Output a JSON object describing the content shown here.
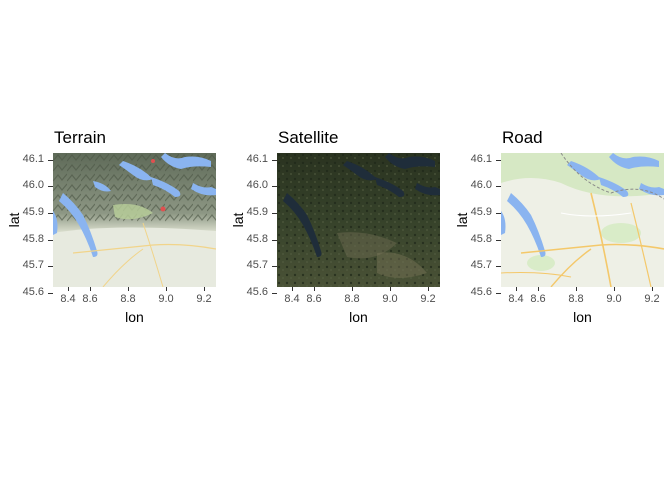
{
  "panels": [
    {
      "title": "Terrain",
      "style": "terrain"
    },
    {
      "title": "Satellite",
      "style": "satellite"
    },
    {
      "title": "Road",
      "style": "road"
    }
  ],
  "axes": {
    "xlabel": "lon",
    "ylabel": "lat",
    "xticks": [
      "8.4",
      "8.6",
      "8.8",
      "9.0",
      "9.2"
    ],
    "yticks": [
      "46.1",
      "46.0",
      "45.9",
      "45.8",
      "45.7",
      "45.6"
    ],
    "xlim": [
      8.4,
      9.27
    ],
    "ylim": [
      45.52,
      46.13
    ]
  },
  "colors": {
    "water": "#8ab4f0",
    "terrain_mountain": "#6f7a66",
    "terrain_plain": "#e6e8dc",
    "satellite_forest": "#2e3a22",
    "road_land": "#eef0e6",
    "road_highway": "#f4c86a"
  }
}
